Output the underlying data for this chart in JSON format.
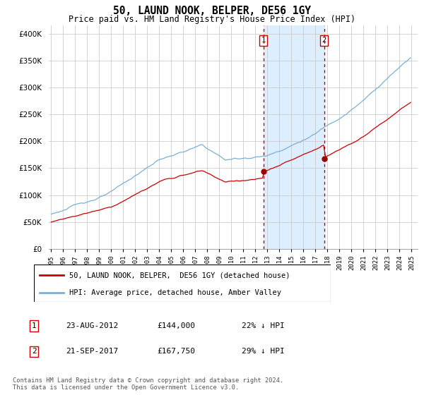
{
  "title": "50, LAUND NOOK, BELPER, DE56 1GY",
  "subtitle": "Price paid vs. HM Land Registry's House Price Index (HPI)",
  "ytick_values": [
    0,
    50000,
    100000,
    150000,
    200000,
    250000,
    300000,
    350000,
    400000
  ],
  "ylim": [
    0,
    415000
  ],
  "xlim_left": 1994.8,
  "xlim_right": 2025.5,
  "marker1": {
    "date_label": "23-AUG-2012",
    "price": "£144,000",
    "pct": "22% ↓ HPI",
    "x_year": 2012.65,
    "y_val": 144000
  },
  "marker2": {
    "date_label": "21-SEP-2017",
    "price": "£167,750",
    "pct": "29% ↓ HPI",
    "x_year": 2017.72,
    "y_val": 167750
  },
  "legend_house": "50, LAUND NOOK, BELPER,  DE56 1GY (detached house)",
  "legend_hpi": "HPI: Average price, detached house, Amber Valley",
  "footnote": "Contains HM Land Registry data © Crown copyright and database right 2024.\nThis data is licensed under the Open Government Licence v3.0.",
  "line_color_house": "#cc0000",
  "line_color_hpi": "#7bafd4",
  "shaded_color": "#ddeeff",
  "grid_color": "#cccccc",
  "background_color": "#ffffff",
  "marker_vline_color": "#cc0000",
  "marker_dot_color": "#990000"
}
